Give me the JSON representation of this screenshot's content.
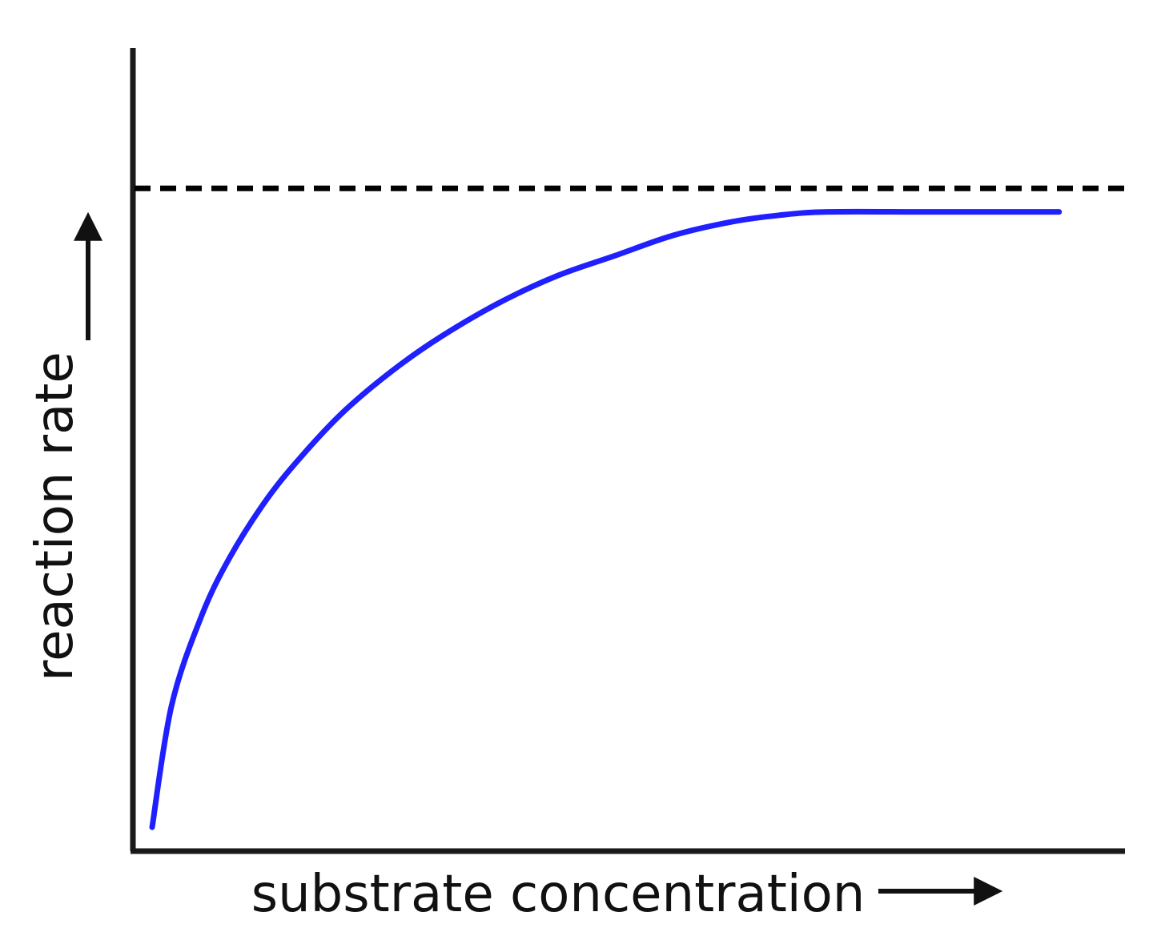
{
  "chart_data": {
    "type": "line",
    "title": "",
    "xlabel": "substrate concentration",
    "ylabel": "reaction rate",
    "xlim": [
      0,
      1.0
    ],
    "ylim": [
      0,
      1.0
    ],
    "grid": false,
    "legend": "none",
    "series": [
      {
        "x": [
          0.0,
          0.02,
          0.05,
          0.08,
          0.12,
          0.16,
          0.2,
          0.25,
          0.3,
          0.36,
          0.42,
          0.48,
          0.54,
          0.6,
          0.65,
          0.7,
          0.8,
          0.9,
          0.94
        ],
        "values": [
          0.02,
          0.2,
          0.33,
          0.42,
          0.51,
          0.58,
          0.64,
          0.7,
          0.75,
          0.8,
          0.84,
          0.87,
          0.9,
          0.92,
          0.93,
          0.935,
          0.935,
          0.935,
          0.935
        ],
        "color": "#1f1fff"
      }
    ],
    "asymptote": {
      "y": 0.97,
      "style": "dashed",
      "color": "#000000"
    },
    "colors": {
      "axis": "#1a1a1a",
      "curve": "#1f1fff",
      "asymptote": "#000000"
    }
  }
}
